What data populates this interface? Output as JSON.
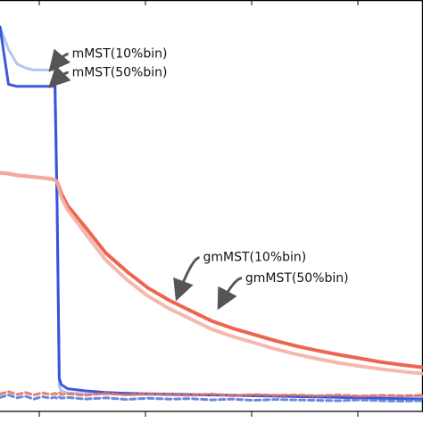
{
  "chart_data": {
    "type": "line",
    "title": "",
    "xlabel": "",
    "ylabel": "",
    "xlim": [
      0,
      100
    ],
    "ylim": [
      0,
      100
    ],
    "grid": false,
    "legend": "none",
    "x": [
      0,
      2,
      4,
      6,
      8,
      10,
      12,
      13,
      13.5,
      14,
      14.5,
      16,
      20,
      25,
      30,
      35,
      40,
      45,
      50,
      55,
      60,
      65,
      70,
      75,
      80,
      85,
      90,
      95,
      100
    ],
    "series": [
      {
        "name": "mMST(10%bin)",
        "color": "#a9c0f2",
        "width": 3,
        "values": [
          93.5,
          88,
          84.5,
          83.5,
          83,
          83,
          83,
          83,
          50,
          6,
          5,
          4.5,
          4.3,
          4.2,
          4.1,
          4.1,
          4.0,
          4.0,
          4.0,
          3.9,
          3.9,
          3.9,
          3.8,
          3.8,
          3.8,
          3.7,
          3.7,
          3.7,
          3.7
        ]
      },
      {
        "name": "mMST(50%bin)",
        "color": "#2b45d8",
        "width": 3,
        "values": [
          93.5,
          79.5,
          79,
          79,
          79,
          79,
          79,
          79,
          50,
          8,
          6.5,
          5.5,
          5,
          4.6,
          4.4,
          4.3,
          4.2,
          4.1,
          4.0,
          3.9,
          3.8,
          3.7,
          3.6,
          3.5,
          3.4,
          3.3,
          3.2,
          3.1,
          3.0
        ]
      },
      {
        "name": "gmMST(10%bin)",
        "color": "#e9543d",
        "width": 4,
        "values": [
          58,
          57.8,
          57.4,
          57.2,
          57,
          56.8,
          56.5,
          56.3,
          55.8,
          54.5,
          53,
          50,
          45,
          38.5,
          34,
          30,
          27,
          24.5,
          22,
          20.2,
          18.7,
          17.2,
          15.9,
          14.8,
          13.8,
          12.9,
          12,
          11.3,
          10.7
        ]
      },
      {
        "name": "gmMST(50%bin)",
        "color": "#f4b0a5",
        "width": 4,
        "values": [
          58,
          57.8,
          57.4,
          57.2,
          57,
          56.8,
          56.5,
          56.3,
          55.8,
          54,
          52,
          49,
          43.5,
          36.8,
          32,
          28,
          25,
          22.5,
          20,
          18.2,
          16.7,
          15.2,
          13.9,
          12.8,
          11.8,
          11,
          10.3,
          9.7,
          9.2
        ]
      },
      {
        "name": "",
        "color": "#e57060",
        "width": 3,
        "dash": true,
        "values": [
          4.2,
          4.8,
          4.1,
          4.6,
          4.0,
          4.5,
          4.1,
          4.4,
          4.2,
          4.6,
          4.1,
          4.3,
          3.9,
          4.4,
          4.0,
          4.3,
          4.1,
          3.9,
          4.2,
          3.8,
          4.1,
          3.9,
          4.0,
          3.8,
          4.0,
          3.7,
          3.9,
          3.8,
          3.9
        ]
      },
      {
        "name": "",
        "color": "#5a7cd8",
        "width": 3,
        "dash": true,
        "values": [
          3.4,
          4.0,
          3.3,
          3.7,
          3.0,
          3.6,
          3.2,
          3.5,
          3.1,
          3.5,
          3.2,
          3.4,
          3.0,
          3.3,
          2.9,
          3.2,
          3.0,
          3.1,
          2.8,
          3.0,
          2.7,
          2.9,
          2.8,
          2.7,
          2.6,
          2.8,
          2.6,
          2.5,
          2.6
        ]
      }
    ],
    "annotations": [
      {
        "text": "mMST(10%bin)",
        "x": 17,
        "y": 86,
        "arrow_to_x": 12.3,
        "arrow_to_y": 83.5
      },
      {
        "text": "mMST(50%bin)",
        "x": 17,
        "y": 81.5,
        "arrow_to_x": 12.3,
        "arrow_to_y": 79.5
      },
      {
        "text": "gmMST(10%bin)",
        "x": 48,
        "y": 36.5,
        "arrow_to_x": 42,
        "arrow_to_y": 28
      },
      {
        "text": "gmMST(50%bin)",
        "x": 58,
        "y": 31.5,
        "arrow_to_x": 52,
        "arrow_to_y": 25.8
      }
    ]
  }
}
